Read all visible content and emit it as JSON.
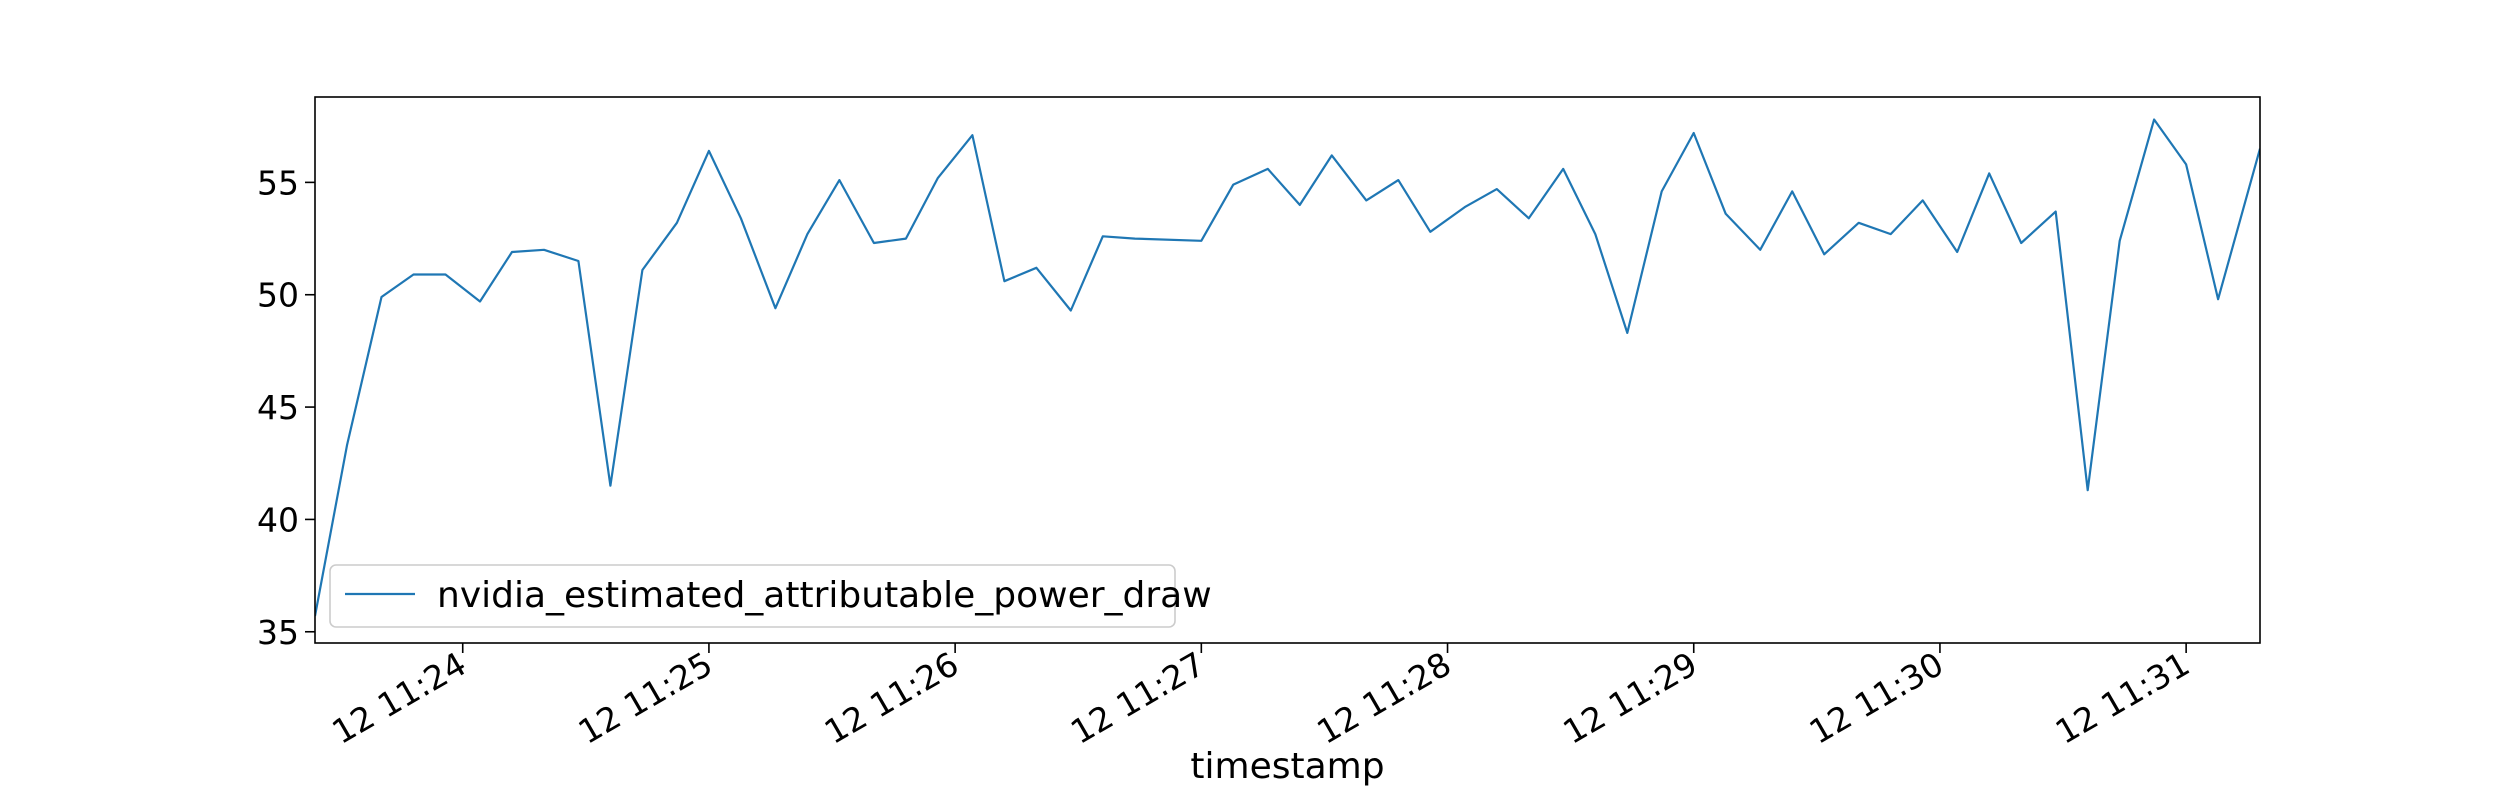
{
  "chart_data": {
    "type": "line",
    "title": "",
    "xlabel": "timestamp",
    "ylabel": "",
    "x_unit": "minute of hour (11:xx)",
    "xlim": [
      23.4,
      31.3
    ],
    "ylim": [
      34.5,
      58.8
    ],
    "grid": false,
    "legend_position": "lower left",
    "x_tick_values": [
      24,
      25,
      26,
      27,
      28,
      29,
      30,
      31
    ],
    "x_tick_labels": [
      "12 11:24",
      "12 11:25",
      "12 11:26",
      "12 11:27",
      "12 11:28",
      "12 11:29",
      "12 11:30",
      "12 11:31"
    ],
    "y_tick_values": [
      35,
      40,
      45,
      50,
      55
    ],
    "y_tick_labels": [
      "35",
      "40",
      "45",
      "50",
      "55"
    ],
    "series": [
      {
        "name": "nvidia_estimated_attributable_power_draw",
        "color": "#1f77b4",
        "x": [
          23.4,
          23.53,
          23.67,
          23.8,
          23.93,
          24.07,
          24.2,
          24.33,
          24.47,
          24.6,
          24.73,
          24.87,
          25.0,
          25.13,
          25.27,
          25.4,
          25.53,
          25.67,
          25.8,
          25.93,
          26.07,
          26.2,
          26.33,
          26.47,
          26.6,
          26.73,
          27.0,
          27.13,
          27.27,
          27.4,
          27.53,
          27.67,
          27.8,
          27.93,
          28.07,
          28.2,
          28.33,
          28.47,
          28.6,
          28.73,
          28.87,
          29.0,
          29.13,
          29.27,
          29.4,
          29.53,
          29.67,
          29.8,
          29.93,
          30.07,
          30.2,
          30.33,
          30.47,
          30.6,
          30.73,
          30.87,
          31.0,
          31.13,
          31.3
        ],
        "y": [
          35.7,
          43.3,
          49.9,
          50.9,
          50.9,
          49.7,
          51.9,
          52.0,
          51.5,
          41.5,
          51.1,
          53.2,
          56.4,
          53.4,
          49.4,
          52.7,
          55.1,
          52.3,
          52.5,
          55.2,
          57.1,
          50.6,
          51.2,
          49.3,
          52.6,
          52.5,
          52.4,
          54.9,
          55.6,
          54.0,
          56.2,
          54.2,
          55.1,
          52.8,
          53.9,
          54.7,
          53.4,
          55.6,
          52.7,
          48.3,
          54.6,
          57.2,
          53.6,
          52.0,
          54.6,
          51.8,
          53.2,
          52.7,
          54.2,
          51.9,
          55.4,
          52.3,
          53.7,
          41.3,
          52.4,
          57.8,
          55.8,
          49.8,
          56.5
        ]
      }
    ]
  }
}
